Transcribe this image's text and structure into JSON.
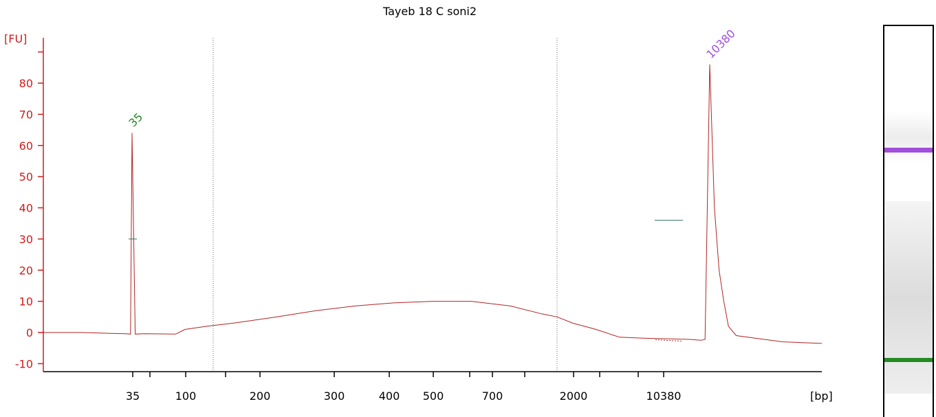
{
  "chart_data": {
    "type": "line",
    "title": "Tayeb 18 C soni2",
    "y_unit_label": "[FU]",
    "x_unit_label": "[bp]",
    "ylim": [
      -12,
      95
    ],
    "y_ticks": [
      -10,
      0,
      10,
      20,
      30,
      40,
      50,
      60,
      70,
      80
    ],
    "x_tick_labels": [
      "35",
      "100",
      "200",
      "300",
      "400",
      "500",
      "700",
      "2000",
      "10380"
    ],
    "region_markers": [
      "region-start",
      "region-end"
    ],
    "peaks": [
      {
        "label": "35",
        "height": 64,
        "color": "#228b22"
      },
      {
        "label": "10380",
        "height": 86,
        "color": "#a24ddb"
      }
    ],
    "series": [
      {
        "color": "#b22222",
        "points": [
          [
            0,
            0
          ],
          [
            0.05,
            0
          ],
          [
            0.09,
            -0.3
          ],
          [
            0.105,
            -0.4
          ],
          [
            0.112,
            -0.5
          ],
          [
            0.114,
            64
          ],
          [
            0.118,
            -0.5
          ],
          [
            0.13,
            -0.4
          ],
          [
            0.17,
            -0.5
          ],
          [
            0.182,
            1
          ],
          [
            0.21,
            2
          ],
          [
            0.244,
            3
          ],
          [
            0.3,
            5
          ],
          [
            0.35,
            7
          ],
          [
            0.4,
            8.5
          ],
          [
            0.45,
            9.5
          ],
          [
            0.5,
            10
          ],
          [
            0.55,
            10
          ],
          [
            0.6,
            8.5
          ],
          [
            0.64,
            6
          ],
          [
            0.66,
            5
          ],
          [
            0.68,
            3
          ],
          [
            0.71,
            1
          ],
          [
            0.74,
            -1.5
          ],
          [
            0.77,
            -1.8
          ],
          [
            0.8,
            -2
          ],
          [
            0.83,
            -2.2
          ],
          [
            0.845,
            -2.5
          ],
          [
            0.85,
            -2.2
          ],
          [
            0.856,
            86
          ],
          [
            0.862,
            40
          ],
          [
            0.868,
            20
          ],
          [
            0.874,
            10
          ],
          [
            0.88,
            2
          ],
          [
            0.89,
            -1
          ],
          [
            0.92,
            -2
          ],
          [
            0.95,
            -3
          ],
          [
            0.98,
            -3.3
          ],
          [
            1.0,
            -3.5
          ]
        ]
      }
    ],
    "half_height_markers": [
      30,
      36
    ]
  },
  "gel": {
    "bands": [
      {
        "name": "upper-marker-band",
        "color": "#a24ddb"
      },
      {
        "name": "lower-marker-band",
        "color": "#228b22"
      }
    ]
  }
}
